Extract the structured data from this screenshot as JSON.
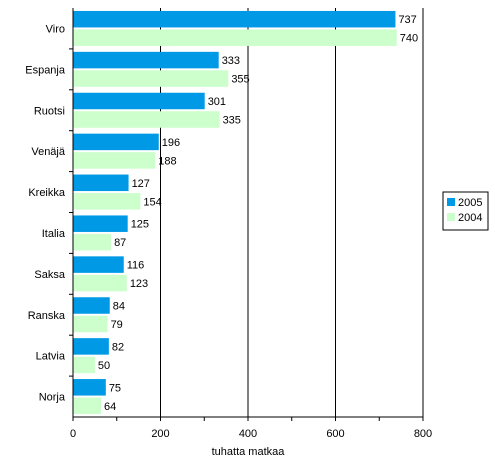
{
  "chart_data": {
    "type": "bar",
    "orientation": "horizontal",
    "categories": [
      "Viro",
      "Espanja",
      "Ruotsi",
      "Venäjä",
      "Kreikka",
      "Italia",
      "Saksa",
      "Ranska",
      "Latvia",
      "Norja"
    ],
    "series": [
      {
        "name": "2005",
        "values": [
          737,
          333,
          301,
          196,
          127,
          125,
          116,
          84,
          82,
          75
        ],
        "color": "#0099E6"
      },
      {
        "name": "2004",
        "values": [
          740,
          355,
          335,
          188,
          154,
          87,
          123,
          79,
          50,
          64
        ],
        "color": "#CCFFCC"
      }
    ],
    "xlabel": "tuhatta matkaa",
    "xlim": [
      0,
      800
    ],
    "xticks": [
      0,
      200,
      400,
      600,
      800
    ],
    "grid": true,
    "legend": "right"
  }
}
